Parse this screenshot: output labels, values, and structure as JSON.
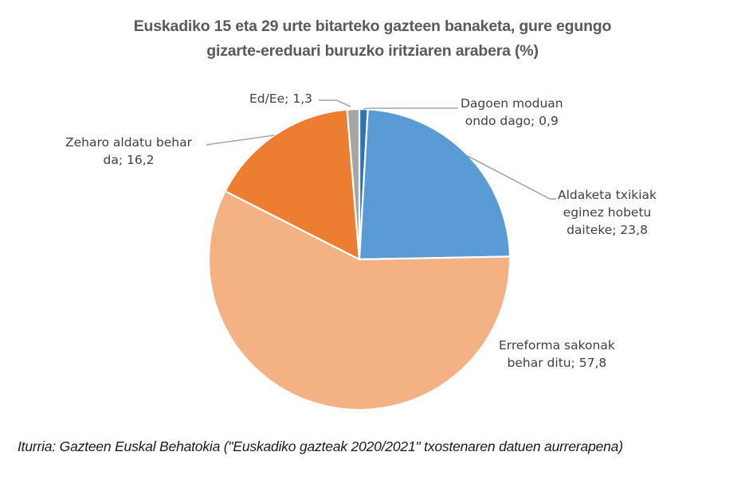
{
  "chart_data": {
    "type": "pie",
    "title": "Euskadiko  15 eta 29 urte bitarteko gazteen banaketa, gure egungo gizarte-ereduari buruzko  iritziaren arabera (%)",
    "title_lines": [
      "Euskadiko  15 eta 29 urte bitarteko gazteen banaketa, gure egungo",
      "gizarte-ereduari buruzko  iritziaren arabera (%)"
    ],
    "categories": [
      "Dagoen moduan ondo dago",
      "Aldaketa txikiak eginez hobetu daiteke",
      "Erreforma sakonak behar ditu",
      "Zeharo aldatu behar da",
      "Ed/Ee"
    ],
    "values": [
      0.9,
      23.8,
      57.8,
      16.2,
      1.3
    ],
    "colors": [
      "#2e75b6",
      "#5b9bd5",
      "#f4b183",
      "#ed7d31",
      "#a5a5a5"
    ],
    "start_angle_deg": 0,
    "direction": "clockwise",
    "data_labels": [
      {
        "lines": [
          "Dagoen moduan",
          "ondo dago; 0,9"
        ]
      },
      {
        "lines": [
          "Aldaketa txikiak",
          "eginez hobetu",
          "daiteke; 23,8"
        ]
      },
      {
        "lines": [
          "Erreforma sakonak",
          "behar ditu; 57,8"
        ]
      },
      {
        "lines": [
          "Zeharo aldatu behar",
          "da; 16,2"
        ]
      },
      {
        "lines": [
          "Ed/Ee; 1,3"
        ]
      }
    ],
    "legend": "none",
    "xlabel": "",
    "ylabel": ""
  },
  "source": "Iturria: Gazteen Euskal Behatokia (\"Euskadiko gazteak 2020/2021\" txostenaren datuen aurrerapena)"
}
